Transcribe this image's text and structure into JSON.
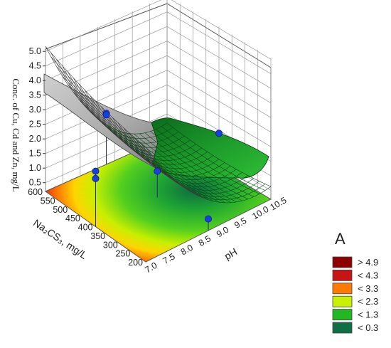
{
  "chart_data": {
    "type": "surface3d",
    "xlabel": "pH",
    "ylabel": "Na₂CS₃, mg/L",
    "zlabel": "Conc. of Cu, Cd and Zn, mg/L",
    "xlim": [
      7.0,
      10.5
    ],
    "ylim": [
      200,
      600
    ],
    "zlim": [
      0.5,
      5.0
    ],
    "x_ticks": [
      "7.0",
      "7.5",
      "8.0",
      "8.5",
      "9.0",
      "9.5",
      "10.0",
      "10.5"
    ],
    "y_ticks": [
      "200",
      "250",
      "300",
      "350",
      "400",
      "450",
      "500",
      "550",
      "600"
    ],
    "z_ticks": [
      "0.5",
      "1.0",
      "1.5",
      "2.0",
      "2.5",
      "3.0",
      "3.5",
      "4.0",
      "4.5",
      "5.0"
    ],
    "surface_corners": [
      {
        "x": 7.0,
        "y": 600,
        "z": 4.2
      },
      {
        "x": 10.5,
        "y": 600,
        "z": 2.5
      },
      {
        "x": 10.5,
        "y": 200,
        "z": 1.1
      },
      {
        "x": 7.0,
        "y": 200,
        "z": 4.6
      }
    ],
    "surface_min": {
      "x": 9.3,
      "y": 380,
      "z": 0.3
    },
    "points": [
      {
        "x": 7.0,
        "y": 400,
        "z": 2.1
      },
      {
        "x": 7.0,
        "y": 400,
        "z": 1.85
      },
      {
        "x": 8.75,
        "y": 600,
        "z": 1.95
      },
      {
        "x": 8.75,
        "y": 600,
        "z": 1.9
      },
      {
        "x": 10.5,
        "y": 400,
        "z": 1.4
      },
      {
        "x": 8.75,
        "y": 400,
        "z": 1.1
      },
      {
        "x": 8.75,
        "y": 200,
        "z": 0.6
      }
    ],
    "legend": {
      "title": "A",
      "position": "right",
      "entries": [
        {
          "label": "> 4.9",
          "color": "#8c0000"
        },
        {
          "label": "< 4.3",
          "color": "#c81414"
        },
        {
          "label": "< 3.3",
          "color": "#ff7a00"
        },
        {
          "label": "< 2.3",
          "color": "#c8f000"
        },
        {
          "label": "< 1.3",
          "color": "#22b822"
        },
        {
          "label": "< 0.3",
          "color": "#0f6e46"
        }
      ]
    },
    "grid": true,
    "colors": {
      "surface_front": "#bdbdbd",
      "surface_back": "#1f9a2b",
      "points": "#1a3fe0"
    }
  }
}
